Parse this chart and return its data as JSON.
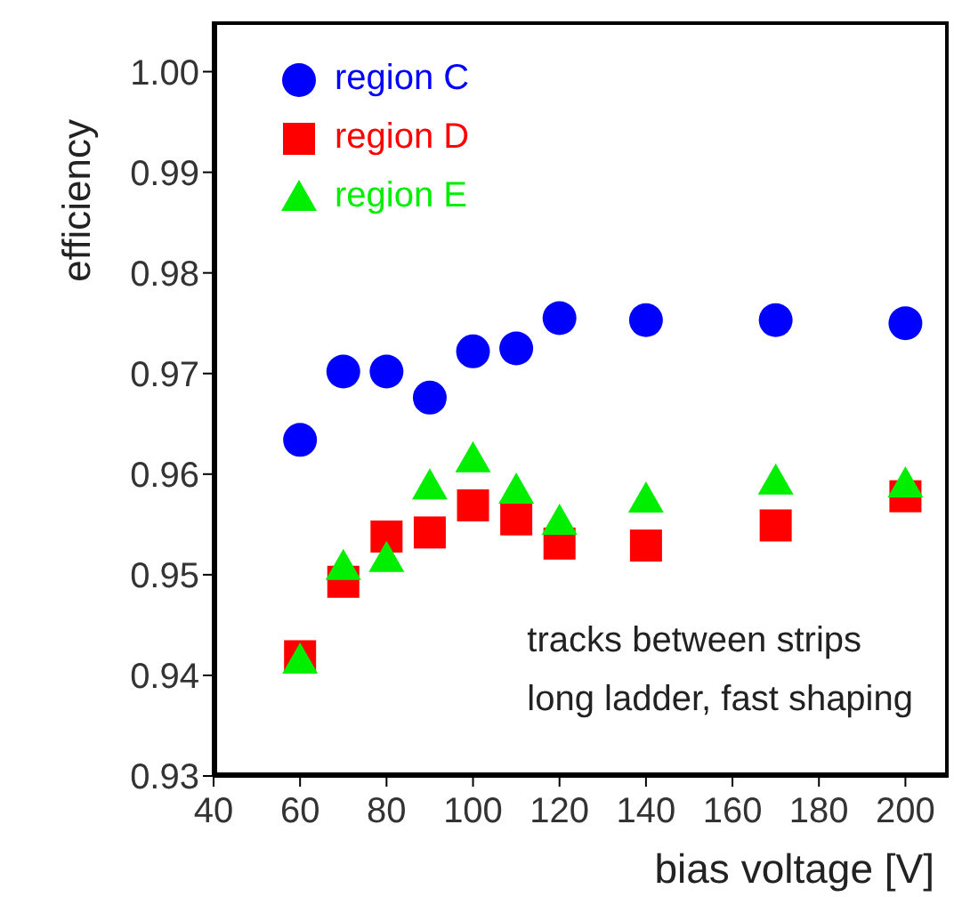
{
  "chart_data": {
    "type": "scatter",
    "xlabel": "bias voltage [V]",
    "ylabel": "efficiency",
    "x": [
      60,
      70,
      80,
      90,
      100,
      110,
      120,
      140,
      170,
      200
    ],
    "series": [
      {
        "name": "region C",
        "color": "#0000ff",
        "marker": "circle",
        "values": [
          0.9634,
          0.9702,
          0.9702,
          0.9676,
          0.9722,
          0.9725,
          0.9755,
          0.9753,
          0.9753,
          0.975
        ]
      },
      {
        "name": "region D",
        "color": "#ff0000",
        "marker": "square",
        "values": [
          0.9419,
          0.9493,
          0.9538,
          0.9542,
          0.9569,
          0.9555,
          0.9531,
          0.9529,
          0.9549,
          0.9578
        ]
      },
      {
        "name": "region E",
        "color": "#00ee00",
        "marker": "triangle",
        "values": [
          0.9415,
          0.9508,
          0.9516,
          0.9588,
          0.9615,
          0.9584,
          0.9553,
          0.9575,
          0.9593,
          0.959
        ]
      }
    ],
    "xlim": [
      40,
      210
    ],
    "xticks": [
      40,
      60,
      80,
      100,
      120,
      140,
      160,
      180,
      200
    ],
    "ylim": [
      0.93,
      1.005
    ],
    "yticks": [
      {
        "value": 0.93,
        "label": "0.93"
      },
      {
        "value": 0.94,
        "label": "0.94"
      },
      {
        "value": 0.95,
        "label": "0.95"
      },
      {
        "value": 0.96,
        "label": "0.96"
      },
      {
        "value": 0.97,
        "label": "0.97"
      },
      {
        "value": 0.98,
        "label": "0.98"
      },
      {
        "value": 0.99,
        "label": "0.99"
      },
      {
        "value": 1.0,
        "label": "1.00"
      }
    ],
    "grid": false,
    "legend": "top left",
    "annotations": [
      "tracks between strips",
      "long ladder, fast shaping"
    ]
  }
}
